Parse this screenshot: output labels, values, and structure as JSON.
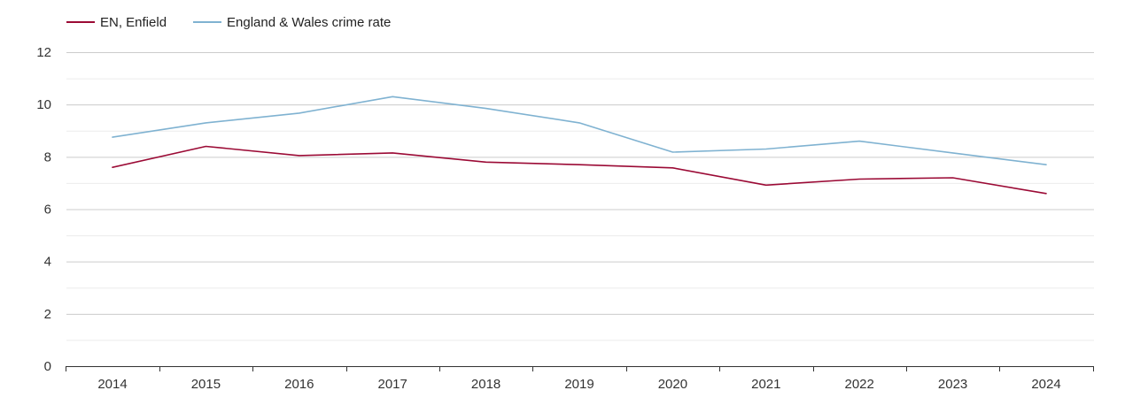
{
  "chart_data": {
    "type": "line",
    "title": "",
    "xlabel": "",
    "ylabel": "",
    "categories": [
      "2014",
      "2015",
      "2016",
      "2017",
      "2018",
      "2019",
      "2020",
      "2021",
      "2022",
      "2023",
      "2024"
    ],
    "ylim": [
      0,
      12
    ],
    "yticks": [
      "0",
      "2",
      "4",
      "6",
      "8",
      "10",
      "12"
    ],
    "grid": true,
    "legend_position": "top-left",
    "series": [
      {
        "name": "EN, Enfield",
        "color": "#9b0a35",
        "values": [
          7.6,
          8.4,
          8.05,
          8.15,
          7.8,
          7.7,
          7.58,
          6.92,
          7.15,
          7.2,
          6.6
        ]
      },
      {
        "name": "England & Wales crime rate",
        "color": "#7fb2d1",
        "values": [
          8.75,
          9.3,
          9.67,
          10.3,
          9.85,
          9.3,
          8.18,
          8.3,
          8.6,
          8.15,
          7.7
        ]
      }
    ]
  }
}
